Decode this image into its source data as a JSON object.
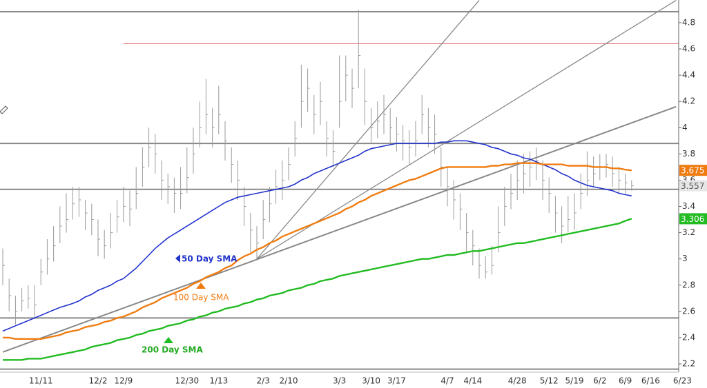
{
  "chart_data": {
    "type": "ohlc",
    "categories": [
      null,
      null,
      null,
      null,
      null,
      null,
      "11/11",
      null,
      null,
      null,
      null,
      null,
      null,
      null,
      null,
      "12/2",
      null,
      null,
      null,
      "12/9",
      null,
      null,
      null,
      null,
      null,
      null,
      null,
      null,
      null,
      "12/30",
      null,
      null,
      null,
      null,
      "1/13",
      null,
      null,
      null,
      null,
      null,
      null,
      "2/3",
      null,
      null,
      null,
      "2/10",
      null,
      null,
      null,
      null,
      null,
      null,
      null,
      "3/3",
      null,
      null,
      null,
      null,
      "3/10",
      null,
      null,
      null,
      "3/17",
      null,
      null,
      null,
      null,
      null,
      null,
      null,
      "4/7",
      null,
      null,
      null,
      "4/14",
      null,
      null,
      null,
      null,
      null,
      null,
      "4/28",
      null,
      null,
      null,
      null,
      "5/12",
      null,
      null,
      null,
      "5/19",
      null,
      null,
      null,
      "6/2",
      null,
      null,
      null,
      "6/9",
      null,
      null,
      null,
      "6/16",
      null,
      null,
      null,
      null,
      "6/23"
    ],
    "high": [
      3.08,
      2.85,
      2.72,
      2.78,
      2.8,
      2.8,
      3.0,
      3.15,
      3.25,
      3.4,
      3.5,
      3.55,
      3.55,
      3.45,
      3.42,
      3.3,
      3.22,
      3.35,
      3.45,
      3.55,
      3.52,
      3.7,
      3.85,
      4.0,
      3.95,
      3.75,
      3.65,
      3.62,
      3.7,
      3.85,
      4.0,
      4.2,
      4.37,
      4.15,
      4.32,
      4.05,
      3.85,
      3.75,
      3.55,
      3.35,
      3.25,
      3.45,
      3.55,
      3.68,
      3.75,
      3.85,
      4.05,
      4.48,
      4.45,
      4.25,
      4.35,
      4.05,
      3.98,
      4.55,
      4.55,
      4.45,
      4.9,
      4.45,
      4.15,
      4.2,
      4.25,
      4.15,
      4.08,
      4.02,
      3.98,
      4.05,
      4.25,
      4.15,
      4.1,
      3.85,
      3.7,
      3.6,
      3.5,
      3.35,
      3.22,
      3.08,
      3.02,
      3.1,
      3.4,
      3.55,
      3.65,
      3.75,
      3.8,
      3.82,
      3.85,
      3.75,
      3.62,
      3.48,
      3.4,
      3.48,
      3.5,
      3.65,
      3.82,
      3.78,
      3.8,
      3.8,
      3.78,
      3.7,
      3.65,
      3.6,
      null,
      null,
      null,
      null,
      null,
      null,
      null,
      null
    ],
    "low": [
      2.8,
      2.6,
      2.5,
      2.6,
      2.62,
      2.55,
      2.8,
      2.88,
      2.98,
      3.12,
      3.2,
      3.3,
      3.32,
      3.22,
      3.18,
      3.02,
      3.0,
      3.08,
      3.2,
      3.28,
      3.25,
      3.38,
      3.55,
      3.7,
      3.65,
      3.45,
      3.42,
      3.35,
      3.38,
      3.5,
      3.65,
      3.85,
      3.95,
      3.85,
      3.95,
      3.75,
      3.58,
      3.45,
      3.25,
      3.05,
      3.0,
      3.15,
      3.28,
      3.42,
      3.45,
      3.6,
      3.78,
      4.0,
      4.12,
      3.95,
      4.02,
      3.78,
      3.7,
      4.0,
      4.2,
      4.15,
      4.3,
      4.02,
      3.88,
      3.92,
      3.95,
      3.88,
      3.82,
      3.75,
      3.72,
      3.78,
      3.95,
      3.85,
      3.8,
      3.55,
      3.4,
      3.3,
      3.22,
      3.05,
      2.95,
      2.85,
      2.85,
      2.88,
      3.05,
      3.25,
      3.38,
      3.45,
      3.5,
      3.55,
      3.6,
      3.45,
      3.35,
      3.2,
      3.12,
      3.2,
      3.22,
      3.38,
      3.48,
      3.55,
      3.6,
      3.62,
      3.55,
      3.5,
      3.5,
      3.52,
      null,
      null,
      null,
      null,
      null,
      null,
      null,
      null
    ],
    "close": [
      2.95,
      2.72,
      2.6,
      2.68,
      2.7,
      2.65,
      2.9,
      3.0,
      3.1,
      3.25,
      3.3,
      3.42,
      3.45,
      3.35,
      3.3,
      3.15,
      3.1,
      3.2,
      3.32,
      3.4,
      3.38,
      3.5,
      3.7,
      3.85,
      3.8,
      3.6,
      3.55,
      3.5,
      3.5,
      3.62,
      3.8,
      4.0,
      4.1,
      4.0,
      4.1,
      3.9,
      3.72,
      3.6,
      3.4,
      3.22,
      3.12,
      3.3,
      3.42,
      3.55,
      3.6,
      3.72,
      3.92,
      4.2,
      4.3,
      4.1,
      4.2,
      3.92,
      3.82,
      4.2,
      4.4,
      4.3,
      4.55,
      4.2,
      4.0,
      4.05,
      4.1,
      4.0,
      3.95,
      3.9,
      3.85,
      3.9,
      4.1,
      4.0,
      3.95,
      3.7,
      3.55,
      3.45,
      3.38,
      3.2,
      3.1,
      2.95,
      2.9,
      2.95,
      3.2,
      3.4,
      3.5,
      3.6,
      3.65,
      3.7,
      3.75,
      3.6,
      3.5,
      3.35,
      3.25,
      3.3,
      3.35,
      3.5,
      3.6,
      3.65,
      3.7,
      3.72,
      3.65,
      3.6,
      3.58,
      3.557,
      null,
      null,
      null,
      null,
      null,
      null,
      null,
      null
    ],
    "bar_color": "#9a9a9a",
    "series": [
      {
        "name": "50 Day SMA",
        "color": "#2233cc",
        "values": [
          2.45,
          2.47,
          2.49,
          2.51,
          2.53,
          2.55,
          2.57,
          2.59,
          2.61,
          2.63,
          2.645,
          2.66,
          2.68,
          2.71,
          2.73,
          2.76,
          2.78,
          2.8,
          2.83,
          2.85,
          2.89,
          2.93,
          2.98,
          3.03,
          3.08,
          3.12,
          3.16,
          3.19,
          3.22,
          3.25,
          3.28,
          3.31,
          3.34,
          3.37,
          3.4,
          3.43,
          3.45,
          3.47,
          3.48,
          3.49,
          3.5,
          3.51,
          3.52,
          3.53,
          3.54,
          3.55,
          3.57,
          3.6,
          3.62,
          3.65,
          3.67,
          3.69,
          3.71,
          3.73,
          3.75,
          3.77,
          3.79,
          3.82,
          3.84,
          3.85,
          3.86,
          3.87,
          3.88,
          3.88,
          3.88,
          3.88,
          3.88,
          3.88,
          3.88,
          3.89,
          3.89,
          3.9,
          3.9,
          3.9,
          3.89,
          3.88,
          3.87,
          3.85,
          3.84,
          3.82,
          3.8,
          3.79,
          3.77,
          3.76,
          3.74,
          3.72,
          3.7,
          3.68,
          3.65,
          3.63,
          3.6,
          3.58,
          3.56,
          3.55,
          3.54,
          3.53,
          3.52,
          3.5,
          3.49,
          3.48,
          null,
          null,
          null,
          null,
          null,
          null,
          null,
          null
        ]
      },
      {
        "name": "100  Day SMA",
        "color": "#f07c10",
        "values": [
          2.4,
          2.4,
          2.39,
          2.39,
          2.39,
          2.39,
          2.39,
          2.4,
          2.41,
          2.42,
          2.44,
          2.45,
          2.46,
          2.48,
          2.49,
          2.5,
          2.52,
          2.53,
          2.55,
          2.56,
          2.58,
          2.6,
          2.63,
          2.65,
          2.67,
          2.7,
          2.72,
          2.74,
          2.76,
          2.78,
          2.81,
          2.83,
          2.86,
          2.88,
          2.9,
          2.93,
          2.95,
          2.99,
          3.02,
          3.04,
          3.07,
          3.09,
          3.12,
          3.14,
          3.17,
          3.19,
          3.21,
          3.23,
          3.25,
          3.27,
          3.29,
          3.31,
          3.33,
          3.35,
          3.38,
          3.4,
          3.43,
          3.45,
          3.48,
          3.5,
          3.52,
          3.54,
          3.56,
          3.58,
          3.6,
          3.61,
          3.63,
          3.65,
          3.67,
          3.69,
          3.7,
          3.7,
          3.7,
          3.7,
          3.7,
          3.7,
          3.7,
          3.71,
          3.71,
          3.72,
          3.72,
          3.73,
          3.73,
          3.73,
          3.73,
          3.72,
          3.72,
          3.72,
          3.72,
          3.71,
          3.71,
          3.71,
          3.71,
          3.7,
          3.7,
          3.7,
          3.69,
          3.69,
          3.68,
          3.675,
          null,
          null,
          null,
          null,
          null,
          null,
          null,
          null
        ]
      },
      {
        "name": "200 Day SMA",
        "color": "#22bb22",
        "values": [
          2.23,
          2.23,
          2.23,
          2.23,
          2.24,
          2.24,
          2.24,
          2.25,
          2.26,
          2.27,
          2.28,
          2.29,
          2.3,
          2.31,
          2.33,
          2.34,
          2.35,
          2.36,
          2.38,
          2.39,
          2.4,
          2.42,
          2.43,
          2.45,
          2.46,
          2.47,
          2.49,
          2.5,
          2.51,
          2.53,
          2.54,
          2.56,
          2.57,
          2.59,
          2.6,
          2.62,
          2.63,
          2.64,
          2.66,
          2.67,
          2.69,
          2.7,
          2.72,
          2.73,
          2.74,
          2.76,
          2.77,
          2.78,
          2.8,
          2.81,
          2.83,
          2.84,
          2.85,
          2.87,
          2.88,
          2.89,
          2.9,
          2.91,
          2.92,
          2.93,
          2.94,
          2.95,
          2.96,
          2.97,
          2.98,
          2.99,
          3.0,
          3.0,
          3.01,
          3.02,
          3.03,
          3.03,
          3.04,
          3.05,
          3.06,
          3.06,
          3.07,
          3.08,
          3.09,
          3.1,
          3.11,
          3.12,
          3.12,
          3.13,
          3.14,
          3.15,
          3.16,
          3.17,
          3.18,
          3.19,
          3.2,
          3.21,
          3.22,
          3.23,
          3.24,
          3.25,
          3.26,
          3.27,
          3.29,
          3.306,
          null,
          null,
          null,
          null,
          null,
          null,
          null,
          null
        ]
      }
    ],
    "levels": [
      4.884,
      3.88,
      3.53,
      2.55,
      2.16
    ],
    "level_color": "#888888",
    "resistance": {
      "value": 4.64,
      "start_index": 19,
      "color": "#e06060"
    },
    "trend_lines": [
      {
        "x": [
          40,
          75
        ],
        "values": [
          3.0,
          4.97
        ]
      },
      {
        "x": [
          40,
          106
        ],
        "values": [
          3.0,
          4.97
        ]
      },
      {
        "x": [
          0,
          106
        ],
        "values": [
          2.29,
          4.16
        ]
      }
    ],
    "ylim": [
      2.137,
      4.973
    ],
    "yticks": [
      2.2,
      2.4,
      2.6,
      2.8,
      3,
      3.2,
      3.4,
      3.6,
      3.8,
      4,
      4.2,
      4.4,
      4.6,
      4.8
    ]
  }
}
